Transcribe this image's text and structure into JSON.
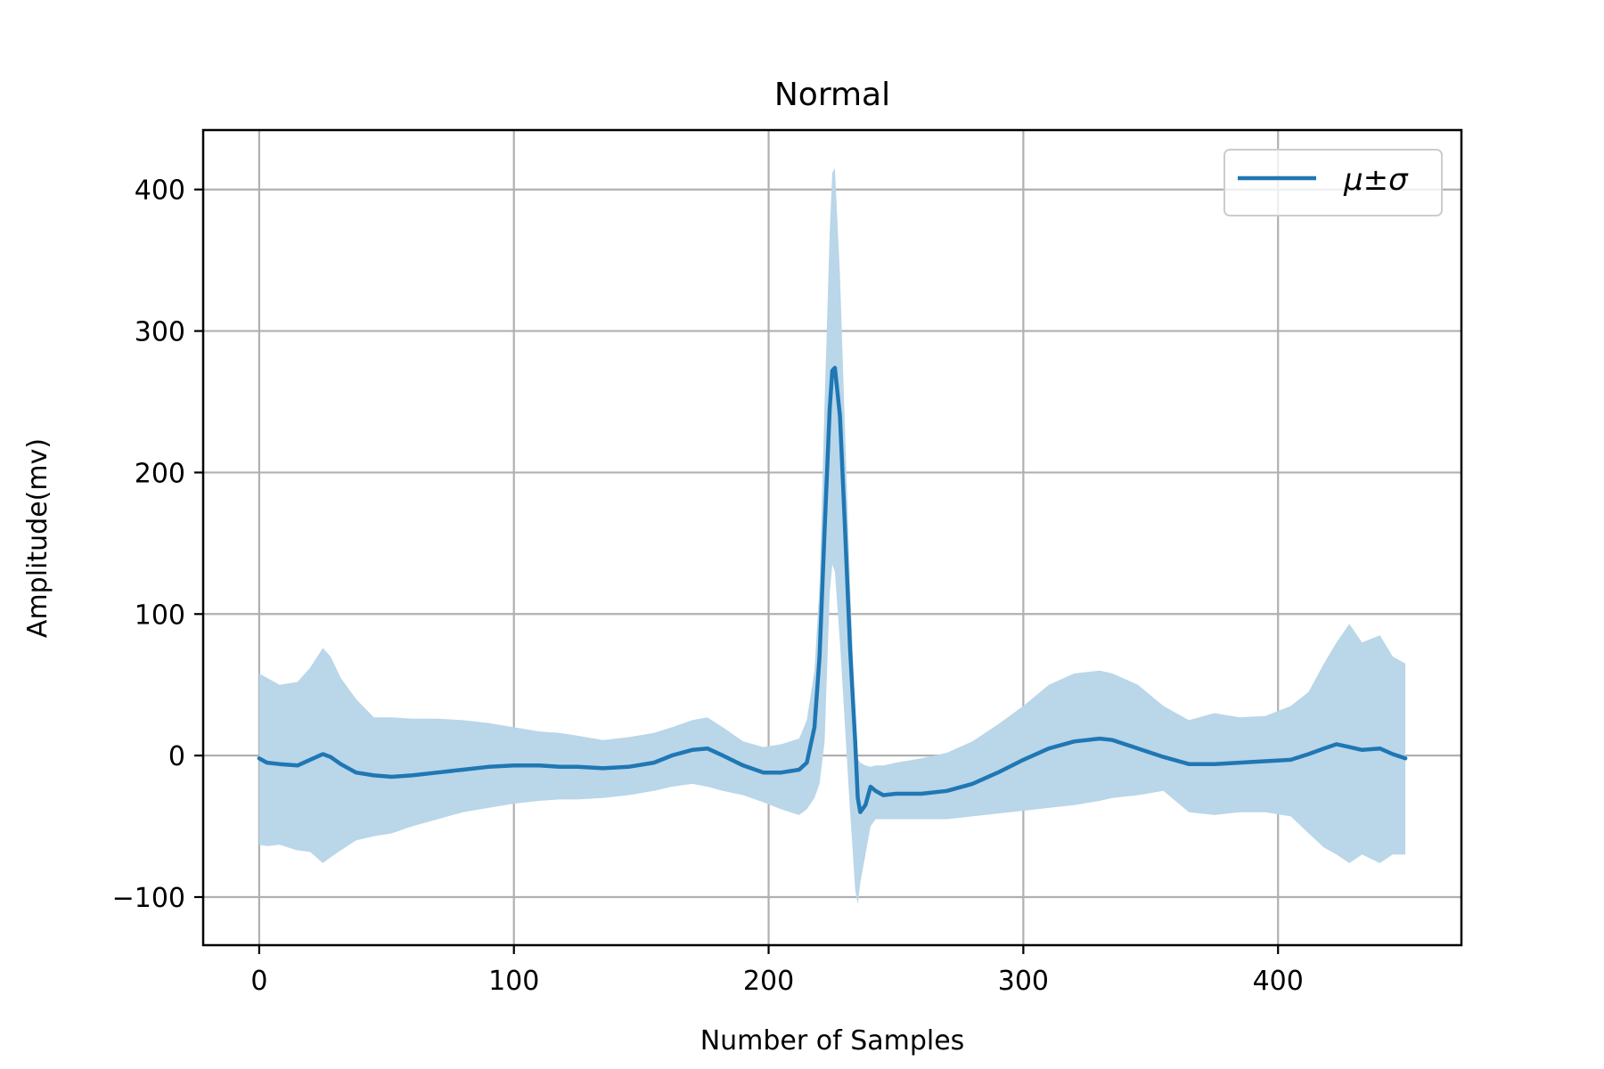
{
  "chart_data": {
    "type": "line",
    "title": "Normal",
    "xlabel": "Number of Samples",
    "ylabel": "Amplitude(mv)",
    "xlim": [
      -22,
      472
    ],
    "ylim": [
      -134,
      442
    ],
    "xticks": [
      0,
      100,
      200,
      300,
      400
    ],
    "xtick_labels": [
      "0",
      "100",
      "200",
      "300",
      "400"
    ],
    "yticks": [
      -100,
      0,
      100,
      200,
      300,
      400
    ],
    "ytick_labels": [
      "−100",
      "0",
      "100",
      "200",
      "300",
      "400"
    ],
    "grid": true,
    "legend": {
      "placement": "top-right",
      "entries": [
        "μ±σ"
      ]
    },
    "colors": {
      "line": "#1f77b4",
      "band": "#bad6e9",
      "grid": "#b0b0b0"
    },
    "series": [
      {
        "name": "μ±σ",
        "x": [
          0,
          3,
          8,
          15,
          20,
          25,
          28,
          32,
          38,
          45,
          52,
          60,
          70,
          80,
          90,
          100,
          110,
          118,
          125,
          135,
          145,
          155,
          162,
          170,
          176,
          182,
          190,
          198,
          205,
          212,
          215,
          218,
          220,
          222,
          224,
          225,
          226,
          228,
          230,
          232,
          234,
          235,
          236,
          238,
          240,
          242,
          245,
          250,
          260,
          270,
          280,
          290,
          300,
          310,
          320,
          330,
          335,
          345,
          355,
          365,
          375,
          385,
          395,
          405,
          412,
          418,
          423,
          428,
          433,
          440,
          445,
          450
        ],
        "mean": [
          -2,
          -5,
          -6,
          -7,
          -3,
          1,
          -1,
          -6,
          -12,
          -14,
          -15,
          -14,
          -12,
          -10,
          -8,
          -7,
          -7,
          -8,
          -8,
          -9,
          -8,
          -5,
          0,
          4,
          5,
          0,
          -7,
          -12,
          -12,
          -10,
          -5,
          20,
          70,
          160,
          245,
          272,
          274,
          240,
          160,
          75,
          10,
          -30,
          -40,
          -35,
          -22,
          -25,
          -28,
          -27,
          -27,
          -25,
          -20,
          -12,
          -3,
          5,
          10,
          12,
          11,
          5,
          -1,
          -6,
          -6,
          -5,
          -4,
          -3,
          1,
          5,
          8,
          6,
          4,
          5,
          1,
          -2
        ],
        "upper": [
          58,
          55,
          50,
          52,
          62,
          76,
          70,
          55,
          40,
          27,
          27,
          26,
          26,
          25,
          23,
          20,
          17,
          16,
          14,
          11,
          13,
          16,
          20,
          25,
          27,
          20,
          10,
          6,
          8,
          12,
          25,
          60,
          120,
          250,
          370,
          412,
          415,
          340,
          230,
          120,
          30,
          -2,
          -5,
          -7,
          -8,
          -7,
          -7,
          -5,
          -2,
          2,
          10,
          22,
          35,
          50,
          58,
          60,
          58,
          50,
          35,
          25,
          30,
          27,
          28,
          35,
          45,
          65,
          80,
          93,
          80,
          85,
          70,
          65
        ],
        "lower": [
          -63,
          -64,
          -63,
          -67,
          -68,
          -76,
          -72,
          -67,
          -60,
          -57,
          -55,
          -50,
          -45,
          -40,
          -37,
          -34,
          -32,
          -31,
          -31,
          -30,
          -28,
          -25,
          -22,
          -20,
          -22,
          -25,
          -28,
          -33,
          -38,
          -42,
          -38,
          -30,
          -20,
          10,
          115,
          135,
          130,
          80,
          20,
          -40,
          -95,
          -105,
          -90,
          -70,
          -50,
          -45,
          -45,
          -45,
          -45,
          -45,
          -43,
          -41,
          -39,
          -37,
          -35,
          -32,
          -30,
          -28,
          -25,
          -40,
          -42,
          -40,
          -40,
          -43,
          -55,
          -65,
          -70,
          -76,
          -70,
          -76,
          -70,
          -70
        ]
      }
    ]
  }
}
